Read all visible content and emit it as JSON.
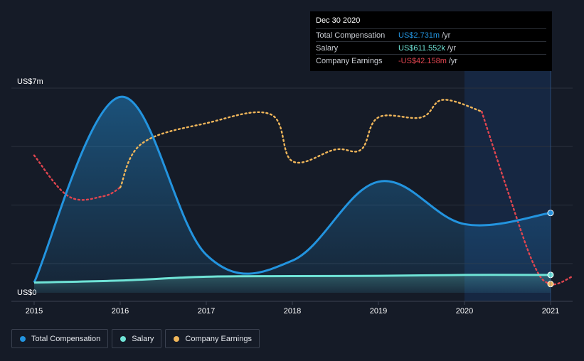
{
  "colors": {
    "background": "#151b27",
    "total_compensation": "#2394df",
    "salary": "#6fe3d6",
    "company_earnings_positive": "#f0b65a",
    "company_earnings_negative": "#e0454f",
    "gridline": "#2a303c"
  },
  "tooltip": {
    "date": "Dec 30 2020",
    "rows": [
      {
        "label": "Total Compensation",
        "value": "US$2.731m",
        "unit": "/yr",
        "color": "#2394df"
      },
      {
        "label": "Salary",
        "value": "US$611.552k",
        "unit": "/yr",
        "color": "#6fe3d6"
      },
      {
        "label": "Company Earnings",
        "value": "-US$42.158m",
        "unit": "/yr",
        "color": "#e0454f"
      }
    ]
  },
  "legend": [
    {
      "label": "Total Compensation",
      "color": "#2394df"
    },
    {
      "label": "Salary",
      "color": "#6fe3d6"
    },
    {
      "label": "Company Earnings",
      "color": "#f0b65a"
    }
  ],
  "chart_data": {
    "type": "line",
    "y_top_label": "US$7m",
    "y_bottom_label": "US$0",
    "ylim": [
      0,
      7
    ],
    "x_ticks": [
      "2015",
      "2016",
      "2017",
      "2018",
      "2019",
      "2020",
      "2021"
    ],
    "xlim": [
      2015.0,
      2021.25
    ],
    "grid": true,
    "highlight_region": [
      2020.0,
      2021.0
    ],
    "series": [
      {
        "name": "Total Compensation",
        "unit": "US$m",
        "points": [
          [
            2015.0,
            0.35
          ],
          [
            2016.0,
            6.7
          ],
          [
            2017.0,
            1.3
          ],
          [
            2018.0,
            1.1
          ],
          [
            2019.0,
            3.8
          ],
          [
            2020.0,
            2.35
          ],
          [
            2021.0,
            2.731
          ]
        ]
      },
      {
        "name": "Salary",
        "unit": "US$m",
        "points": [
          [
            2015.0,
            0.35
          ],
          [
            2016.0,
            0.42
          ],
          [
            2017.0,
            0.55
          ],
          [
            2018.0,
            0.57
          ],
          [
            2019.0,
            0.58
          ],
          [
            2020.0,
            0.61
          ],
          [
            2021.0,
            0.612
          ]
        ]
      },
      {
        "name": "Company Earnings",
        "unit": "relative",
        "points": [
          [
            2015.0,
            4.7
          ],
          [
            2015.4,
            3.3
          ],
          [
            2015.8,
            3.3
          ],
          [
            2016.0,
            3.6
          ],
          [
            2016.25,
            5.1
          ],
          [
            2017.0,
            5.8
          ],
          [
            2017.75,
            6.1
          ],
          [
            2018.0,
            4.5
          ],
          [
            2018.5,
            4.9
          ],
          [
            2018.8,
            4.9
          ],
          [
            2019.0,
            6.0
          ],
          [
            2019.5,
            6.0
          ],
          [
            2019.75,
            6.6
          ],
          [
            2020.2,
            6.2
          ],
          [
            2020.5,
            3.5
          ],
          [
            2020.8,
            1.0
          ],
          [
            2021.0,
            0.3
          ],
          [
            2021.25,
            0.55
          ]
        ]
      }
    ]
  }
}
